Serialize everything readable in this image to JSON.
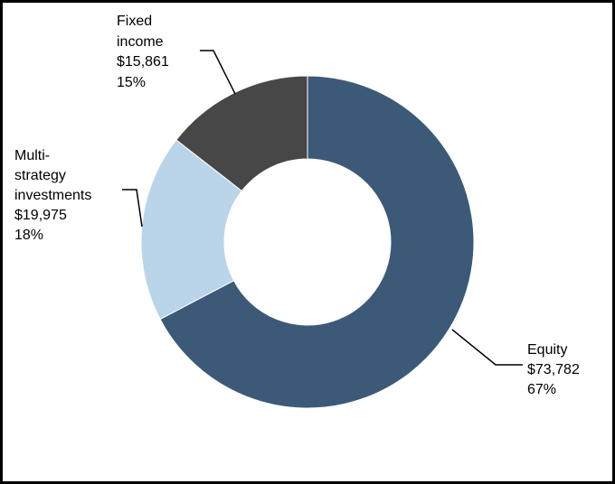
{
  "chart_data": {
    "type": "pie",
    "variant": "donut",
    "title": "",
    "slices": [
      {
        "name": "Equity",
        "value": 73782,
        "value_label": "$73,782",
        "pct_label": "67%",
        "color": "#3c5a78"
      },
      {
        "name": "Multi-strategy investments",
        "value": 19975,
        "value_label": "$19,975",
        "pct_label": "18%",
        "color": "#bad4ea"
      },
      {
        "name": "Fixed income",
        "value": 15861,
        "value_label": "$15,861",
        "pct_label": "15%",
        "color": "#474747"
      }
    ]
  },
  "labels": {
    "equity": {
      "lines": [
        "Equity",
        "$73,782",
        "67%"
      ]
    },
    "multi": {
      "lines": [
        "Multi-",
        "strategy",
        "investments",
        "$19,975",
        "18%"
      ]
    },
    "fixed": {
      "lines": [
        "Fixed",
        "income",
        "$15,861",
        "15%"
      ]
    }
  }
}
